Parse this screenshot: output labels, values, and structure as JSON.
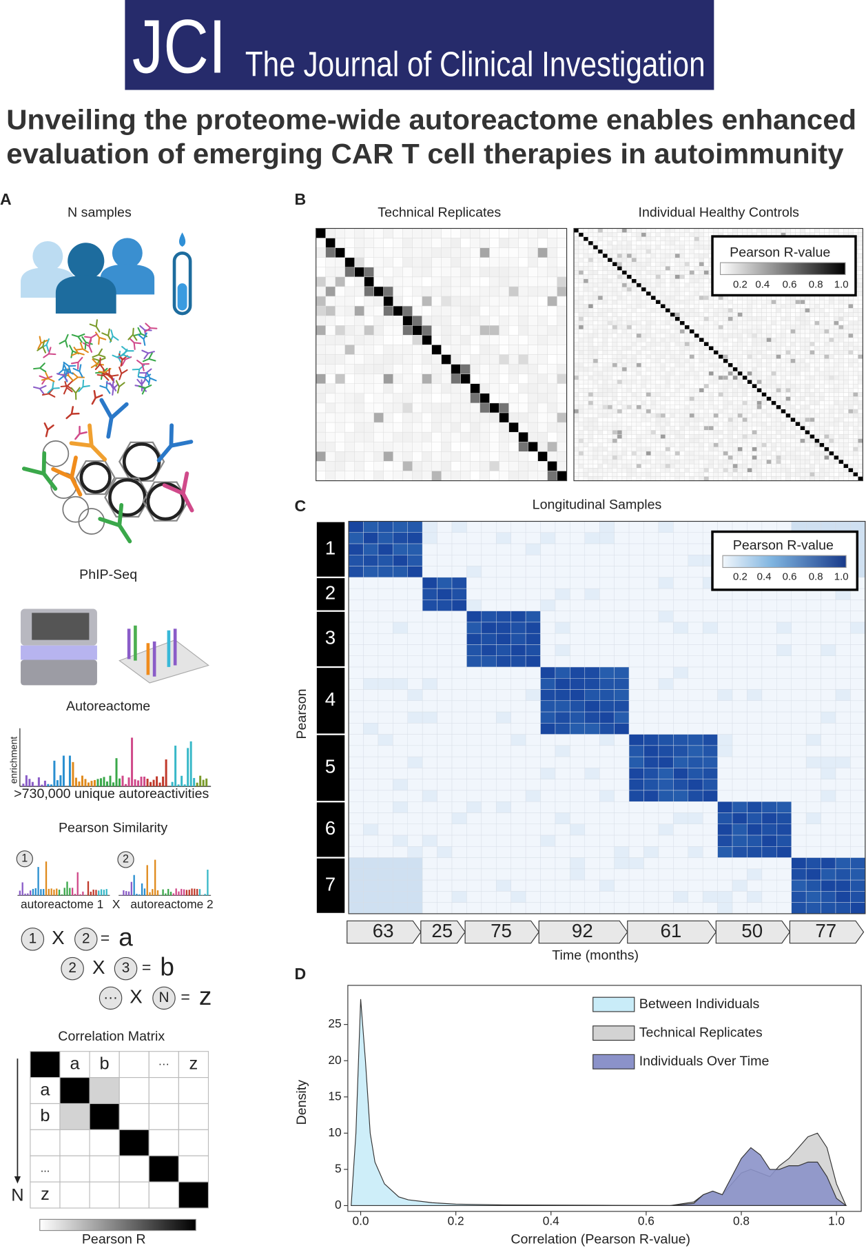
{
  "header": {
    "logo": "JCI",
    "journal": "The Journal of Clinical Investigation"
  },
  "title": [
    "Unveiling the proteome-wide autoreactome enables enhanced",
    "evaluation of emerging CAR T cell therapies in autoimmunity"
  ],
  "panel_a": {
    "label": "A",
    "samples": "N samples",
    "method": "PhIP-Seq",
    "autoreactome": "Autoreactome",
    "y_label": "enrichment",
    "caption": ">730,000 unique autoreactivities",
    "similarity": "Pearson Similarity",
    "profiles": [
      {
        "index": "1",
        "name": "autoreactome 1"
      },
      {
        "index": "2",
        "name": "autoreactome 2"
      }
    ],
    "times": "X",
    "equations": [
      [
        "1",
        "X",
        "2",
        "=",
        "a"
      ],
      [
        "2",
        "X",
        "3",
        "=",
        "b"
      ],
      [
        "···",
        "X",
        "N",
        "=",
        "z"
      ]
    ],
    "matrix_title": "Correlation Matrix",
    "matrix_top": [
      null,
      "a",
      "b",
      null,
      "···",
      "z"
    ],
    "matrix_left": [
      null,
      "a",
      "b",
      null,
      "...",
      "z"
    ],
    "matrix_axis": "N",
    "colorbar": "Pearson R"
  },
  "panel_b": {
    "label": "B",
    "titles": [
      "Technical Replicates",
      "Individual Healthy Controls"
    ],
    "legend_title": "Pearson R-value",
    "legend_ticks": [
      "0.2",
      "0.4",
      "0.6",
      "0.8",
      "1.0"
    ]
  },
  "panel_c": {
    "label": "C",
    "title": "Longitudinal Samples",
    "y_label": "Pearson",
    "groups": [
      "1",
      "2",
      "3",
      "4",
      "5",
      "6",
      "7"
    ],
    "months": [
      "63",
      "25",
      "75",
      "92",
      "61",
      "50",
      "77"
    ],
    "x_label": "Time (months)",
    "legend_title": "Pearson R-value",
    "legend_ticks": [
      "0.2",
      "0.4",
      "0.6",
      "0.8",
      "1.0"
    ]
  },
  "panel_d": {
    "label": "D"
  },
  "chart_data": {
    "type": "area",
    "xlabel": "Correlation (Pearson R-value)",
    "ylabel": "Density",
    "legend": "upper right",
    "x": [
      -0.02,
      -0.01,
      0.0,
      0.01,
      0.02,
      0.03,
      0.05,
      0.08,
      0.1,
      0.15,
      0.2,
      0.3,
      0.5,
      0.65,
      0.7,
      0.72,
      0.74,
      0.76,
      0.78,
      0.8,
      0.82,
      0.84,
      0.86,
      0.88,
      0.9,
      0.92,
      0.94,
      0.96,
      0.98,
      1.0,
      1.02
    ],
    "series": [
      {
        "name": "Technical Replicates",
        "color": "#d3d3d3",
        "values": [
          0,
          0,
          0,
          0,
          0,
          0,
          0,
          0,
          0,
          0,
          0,
          0,
          0,
          0,
          0.5,
          1.5,
          2,
          1.5,
          3,
          4.5,
          5,
          4.5,
          4,
          5.5,
          6.5,
          8,
          9.5,
          10,
          8,
          3,
          0
        ]
      },
      {
        "name": "Individuals Over Time",
        "color": "#8b92c9",
        "values": [
          0,
          0,
          0,
          0,
          0,
          0,
          0,
          0,
          0,
          0,
          0,
          0,
          0,
          0,
          0.3,
          1.5,
          2,
          1.5,
          4,
          6.5,
          8,
          7,
          5,
          5,
          5.5,
          5.5,
          6,
          6,
          4,
          1,
          0
        ]
      },
      {
        "name": "Between Individuals",
        "color": "#c9ecf8",
        "values": [
          0,
          10,
          28.5,
          20,
          10,
          6,
          3,
          1.2,
          0.8,
          0.4,
          0.2,
          0.1,
          0.05,
          0,
          0,
          0,
          0,
          0,
          0,
          0,
          0,
          0,
          0,
          0,
          0,
          0,
          0,
          0,
          0,
          0,
          0
        ]
      }
    ],
    "legend_order": [
      "Between Individuals",
      "Technical Replicates",
      "Individuals Over Time"
    ],
    "xlim": [
      -0.027,
      1.052
    ],
    "ylim": [
      -0.8,
      30.4
    ],
    "xticks": [
      {
        "value": 0,
        "label": "0.0"
      },
      {
        "value": 0.2,
        "label": "0.2"
      },
      {
        "value": 0.4,
        "label": "0.4"
      },
      {
        "value": 0.6,
        "label": "0.6"
      },
      {
        "value": 0.8,
        "label": "0.8"
      },
      {
        "value": 1,
        "label": "1.0"
      }
    ],
    "yticks": [
      0,
      5,
      10,
      15,
      20,
      25
    ]
  }
}
